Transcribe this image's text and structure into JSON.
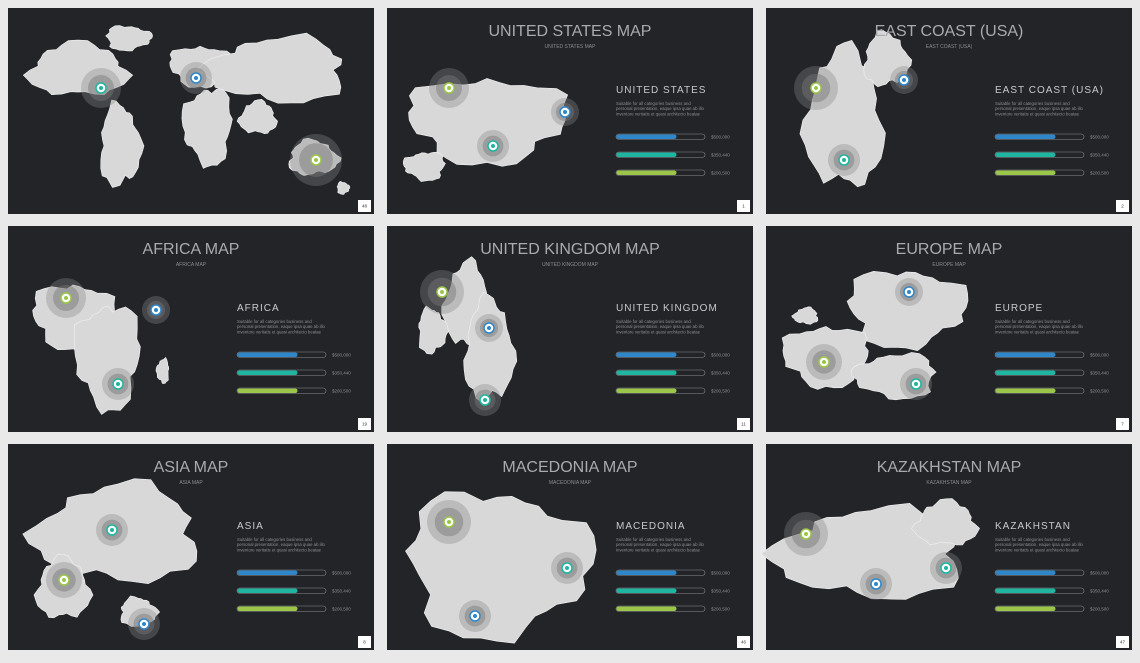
{
  "slides": [
    {
      "page": "48"
    },
    {
      "title": "UNITED  STATES MAP",
      "subtitle": "UNITED  STATES MAP",
      "heading": "UNITED  STATES",
      "description": "Suitable for all categories business and personal presentation, eaque ipsa quae ab illo inventore veritatis et quasi architecto beatae",
      "values": [
        "$500,000",
        "$350,440",
        "$200,500"
      ],
      "page": "1"
    },
    {
      "title": "EAST COAST (USA)",
      "subtitle": "EAST COAST (USA)",
      "heading": "EAST COAST (USA)",
      "description": "Suitable for all categories business and personal presentation, eaque ipsa quae ab illo inventore veritatis et quasi architecto beatae",
      "values": [
        "$500,000",
        "$350,440",
        "$200,500"
      ],
      "page": "2"
    },
    {
      "title": "AFRICA MAP",
      "subtitle": "AFRICA MAP",
      "heading": "AFRICA",
      "description": "Suitable for all categories business and personal presentation, eaque ipsa quae ab illo inventore veritatis et quasi architecto beatae",
      "values": [
        "$500,000",
        "$350,440",
        "$200,500"
      ],
      "page": "19"
    },
    {
      "title": "UNITED KINGDOM MAP",
      "subtitle": "UNITED KINGDOM MAP",
      "heading": "UNITED KINGDOM",
      "description": "Suitable for all categories business and personal presentation, eaque ipsa quae ab illo inventore veritatis et quasi architecto beatae",
      "values": [
        "$500,000",
        "$350,440",
        "$200,500"
      ],
      "page": "11"
    },
    {
      "title": "EUROPE MAP",
      "subtitle": "EUROPE MAP",
      "heading": "EUROPE",
      "description": "Suitable for all categories business and personal presentation, eaque ipsa quae ab illo inventore veritatis et quasi architecto beatae",
      "values": [
        "$500,000",
        "$350,440",
        "$200,500"
      ],
      "page": "7"
    },
    {
      "title": "ASIA MAP",
      "subtitle": "ASIA MAP",
      "heading": "ASIA",
      "description": "Suitable for all categories business and personal presentation, eaque ipsa quae ab illo inventore veritatis et quasi architecto beatae",
      "values": [
        "$500,000",
        "$350,440",
        "$200,500"
      ],
      "page": "8"
    },
    {
      "title": "MACEDONIA MAP",
      "subtitle": "MACEDONIA MAP",
      "heading": "MACEDONIA",
      "description": "Suitable for all categories business and personal presentation, eaque ipsa quae ab illo inventore veritatis et quasi architecto beatae",
      "values": [
        "$500,000",
        "$350,440",
        "$200,500"
      ],
      "page": "46"
    },
    {
      "title": "KAZAKHSTAN MAP",
      "subtitle": "KAZAKHSTAN MAP",
      "heading": "KAZAKHSTAN",
      "description": "Suitable for all categories business and personal presentation, eaque ipsa quae ab illo inventore veritatis et quasi architecto beatae",
      "values": [
        "$500,000",
        "$350,440",
        "$200,500"
      ],
      "page": "47"
    }
  ]
}
